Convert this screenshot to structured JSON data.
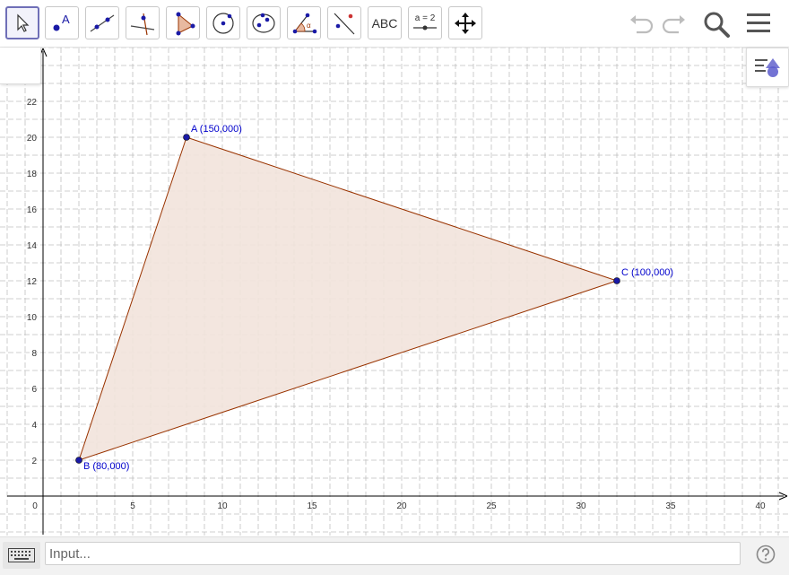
{
  "toolbar": {
    "tools": [
      {
        "id": "move",
        "label": ""
      },
      {
        "id": "point",
        "label": "A"
      },
      {
        "id": "line",
        "label": ""
      },
      {
        "id": "perpendicular",
        "label": ""
      },
      {
        "id": "polygon",
        "label": ""
      },
      {
        "id": "circle",
        "label": ""
      },
      {
        "id": "ellipse",
        "label": ""
      },
      {
        "id": "angle",
        "label": "α"
      },
      {
        "id": "reflect",
        "label": ""
      },
      {
        "id": "text",
        "label": "ABC"
      },
      {
        "id": "slider",
        "label": "a = 2"
      },
      {
        "id": "move-graphics",
        "label": ""
      }
    ],
    "right_icons": [
      "undo-icon",
      "redo-icon",
      "search-icon",
      "menu-icon"
    ]
  },
  "graphics": {
    "x_ticks": [
      "0",
      "5",
      "10",
      "15",
      "20",
      "25",
      "30",
      "35",
      "40"
    ],
    "y_ticks": [
      "2",
      "4",
      "6",
      "8",
      "10",
      "12",
      "14",
      "16",
      "18",
      "20",
      "22"
    ],
    "points": [
      {
        "name": "A",
        "label": "A (150,000)",
        "x": 8,
        "y": 20
      },
      {
        "name": "B",
        "label": "B (80,000)",
        "x": 2,
        "y": 2
      },
      {
        "name": "C",
        "label": "C (100,000)",
        "x": 32,
        "y": 12
      }
    ],
    "colors": {
      "point": "#1a1aa6",
      "label": "#0000cc",
      "polygon_stroke": "#993300",
      "polygon_fill": "#f2e3dc",
      "grid": "#c0c0c0",
      "axis": "#000000"
    }
  },
  "input_bar": {
    "placeholder": "Input..."
  }
}
